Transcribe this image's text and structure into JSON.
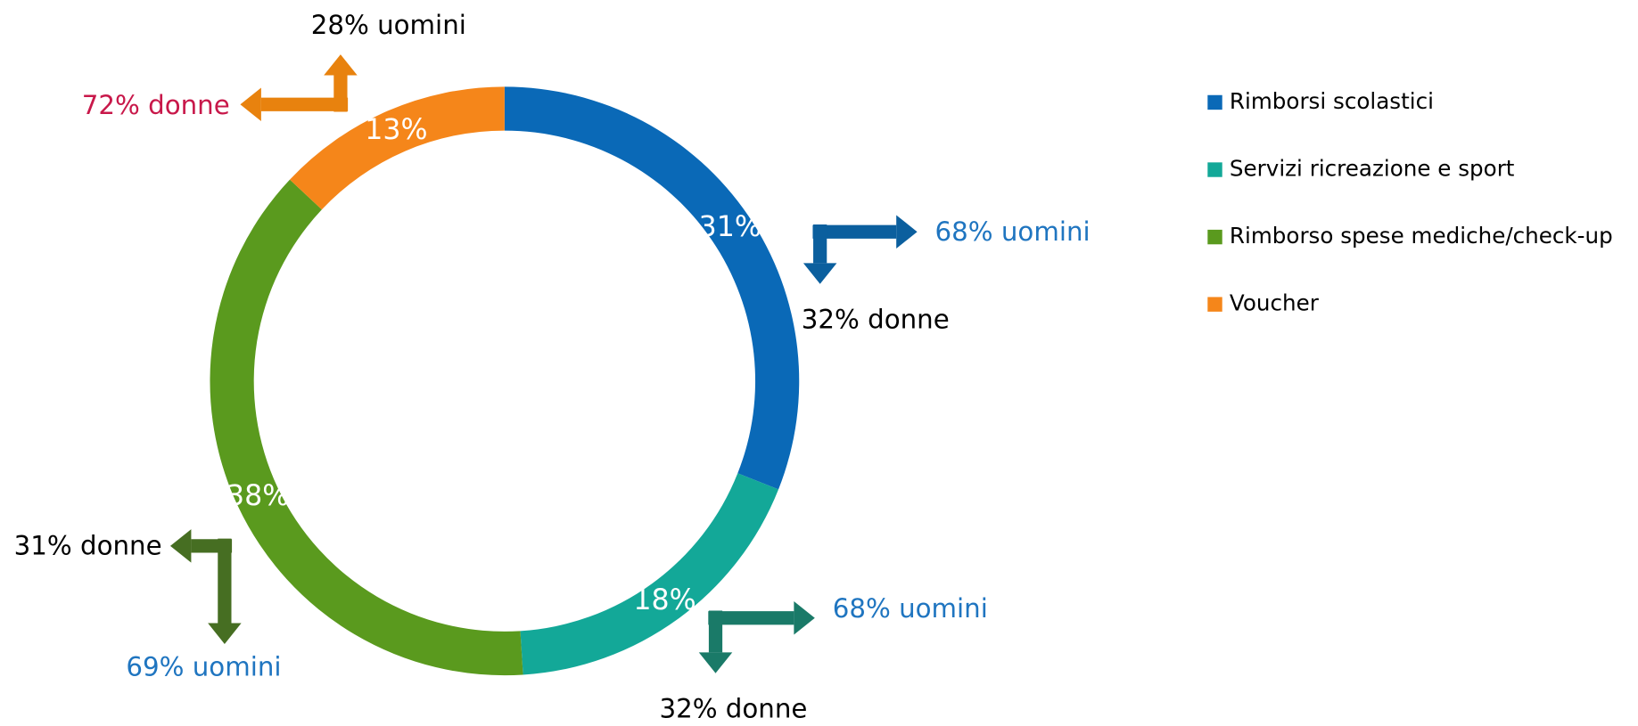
{
  "chart_data": {
    "type": "donut",
    "categories": [
      "Rimborsi scolastici",
      "Servizi ricreazione e sport",
      "Rimborso spese mediche/check-up",
      "Voucher"
    ],
    "values": [
      31,
      18,
      38,
      13
    ],
    "value_labels": [
      "31%",
      "18%",
      "38%",
      "13%"
    ],
    "colors": [
      "#0a69b7",
      "#13a898",
      "#5a9a1e",
      "#f5861a"
    ],
    "annotations": [
      {
        "uomini": "68% uomini",
        "donne": "32% donne"
      },
      {
        "uomini": "68% uomini",
        "donne": "32% donne"
      },
      {
        "uomini": "69% uomini",
        "donne": "31% donne"
      },
      {
        "uomini": "28% uomini",
        "donne": "72% donne"
      }
    ],
    "legend": "right"
  }
}
